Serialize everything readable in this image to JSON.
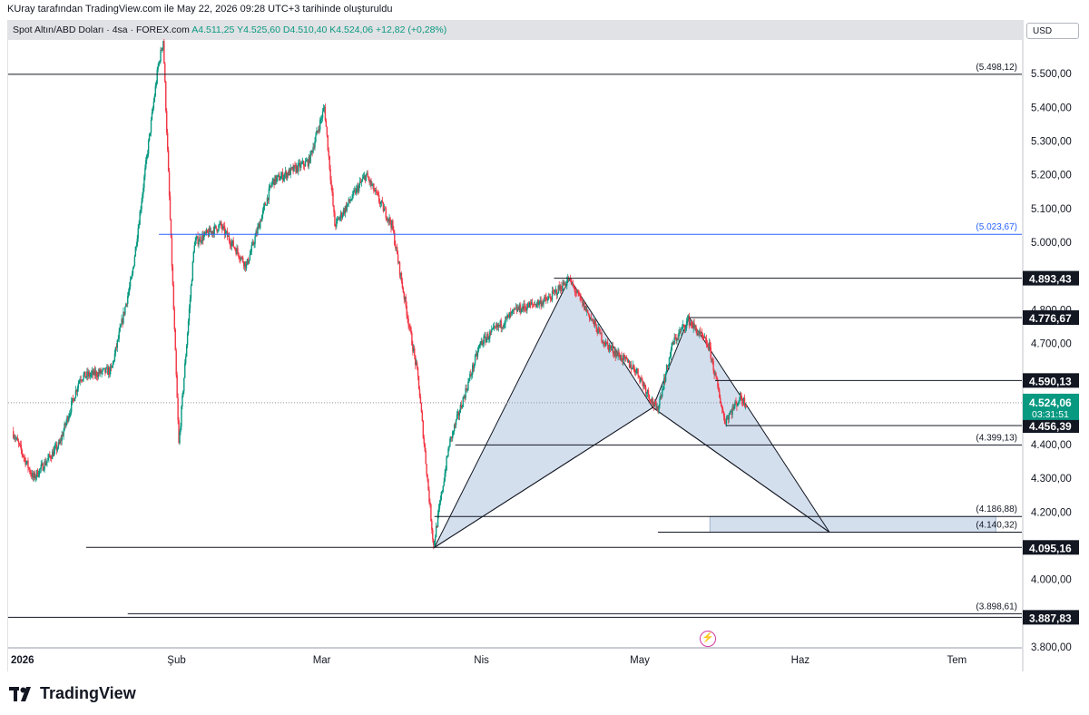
{
  "header": {
    "caption": "KUray tarafından TradingView.com ile May 22, 2026 09:28 UTC+3 tarihinde oluşturuldu",
    "symbol": "Spot Altın/ABD Doları · 4sa · FOREX.com",
    "ohlc": "A4.511,25  Y4.525,60  D4.510,40  K4.524,06  +12,82 (+0,28%)",
    "currency": "USD"
  },
  "brand": {
    "name": "TradingView",
    "icon": "tradingview-logo-icon"
  },
  "colors": {
    "up": "#089981",
    "down": "#f23645",
    "pattern_fill": "#c5d4e8",
    "hline_blue": "#2962ff",
    "last_price": "#089981"
  },
  "chart_data": {
    "type": "candlestick",
    "title": "Spot Altın/ABD Doları",
    "timeframe": "4sa",
    "ylim": [
      3800,
      5600
    ],
    "x_ticks": [
      "2026",
      "Şub",
      "Mar",
      "Nis",
      "May",
      "Haz",
      "Tem"
    ],
    "y_ticks": [
      "5.500,00",
      "5.400,00",
      "5.300,00",
      "5.200,00",
      "5.100,00",
      "5.000,00",
      "4.800,00",
      "4.700,00",
      "4.400,00",
      "4.300,00",
      "4.200,00",
      "4.000,00",
      "3.800,00"
    ],
    "price_path": [
      {
        "date": "2026-01-01",
        "price": 4440
      },
      {
        "date": "2026-01-05",
        "price": 4300
      },
      {
        "date": "2026-01-10",
        "price": 4400
      },
      {
        "date": "2026-01-14",
        "price": 4600
      },
      {
        "date": "2026-01-20",
        "price": 4620
      },
      {
        "date": "2026-01-24",
        "price": 4900
      },
      {
        "date": "2026-01-29",
        "price": 5520
      },
      {
        "date": "2026-01-30",
        "price": 5600
      },
      {
        "date": "2026-02-02",
        "price": 4400
      },
      {
        "date": "2026-02-05",
        "price": 5000
      },
      {
        "date": "2026-02-10",
        "price": 5050
      },
      {
        "date": "2026-02-15",
        "price": 4930
      },
      {
        "date": "2026-02-20",
        "price": 5180
      },
      {
        "date": "2026-02-27",
        "price": 5240
      },
      {
        "date": "2026-03-02",
        "price": 5400
      },
      {
        "date": "2026-03-04",
        "price": 5050
      },
      {
        "date": "2026-03-10",
        "price": 5200
      },
      {
        "date": "2026-03-15",
        "price": 5050
      },
      {
        "date": "2026-03-20",
        "price": 4600
      },
      {
        "date": "2026-03-23",
        "price": 4100
      },
      {
        "date": "2026-03-26",
        "price": 4400
      },
      {
        "date": "2026-04-01",
        "price": 4700
      },
      {
        "date": "2026-04-08",
        "price": 4800
      },
      {
        "date": "2026-04-14",
        "price": 4830
      },
      {
        "date": "2026-04-18",
        "price": 4890
      },
      {
        "date": "2026-04-25",
        "price": 4700
      },
      {
        "date": "2026-05-01",
        "price": 4620
      },
      {
        "date": "2026-05-05",
        "price": 4500
      },
      {
        "date": "2026-05-08",
        "price": 4700
      },
      {
        "date": "2026-05-11",
        "price": 4770
      },
      {
        "date": "2026-05-15",
        "price": 4690
      },
      {
        "date": "2026-05-18",
        "price": 4470
      },
      {
        "date": "2026-05-21",
        "price": 4540
      },
      {
        "date": "2026-05-22",
        "price": 4524
      }
    ],
    "harmonic_pattern": {
      "points": [
        {
          "date": "2026-03-23",
          "price": 4095
        },
        {
          "date": "2026-04-18",
          "price": 4893
        },
        {
          "date": "2026-05-04",
          "price": 4510
        },
        {
          "date": "2026-05-11",
          "price": 4777
        },
        {
          "date": "2026-06-07",
          "price": 4140
        }
      ]
    },
    "horizontal_levels": [
      {
        "label": "(5.498,12)",
        "value": 5498.12,
        "kind": "note",
        "from": "2025-12-30"
      },
      {
        "label": "(5.023,67)",
        "value": 5023.67,
        "kind": "note-blue",
        "from": "2026-01-29"
      },
      {
        "label": "4.893,43",
        "value": 4893.43,
        "kind": "badge",
        "from": "2026-04-15"
      },
      {
        "label": "4.776,67",
        "value": 4776.67,
        "kind": "badge",
        "from": "2026-05-11"
      },
      {
        "label": "4.590,13",
        "value": 4590.13,
        "kind": "badge",
        "from": "2026-05-16"
      },
      {
        "label": "4.456,39",
        "value": 4456.39,
        "kind": "badge",
        "from": "2026-05-18"
      },
      {
        "label": "(4.399,13)",
        "value": 4399.13,
        "kind": "note",
        "from": "2026-03-27"
      },
      {
        "label": "(4.186,88)",
        "value": 4186.88,
        "kind": "note",
        "from": "2026-03-23"
      },
      {
        "label": "(4.140,32)",
        "value": 4140.32,
        "kind": "note",
        "from": "2026-05-05"
      },
      {
        "label": "4.095,16",
        "value": 4095.16,
        "kind": "badge",
        "from": "2026-01-15"
      },
      {
        "label": "(3.898,61)",
        "value": 3898.61,
        "kind": "note",
        "from": "2026-01-23"
      },
      {
        "label": "3.887,83",
        "value": 3887.83,
        "kind": "badge",
        "from": "2025-12-30"
      }
    ],
    "target_zone": {
      "from": "2026-05-15",
      "to": "2026-07-09",
      "low": 4140.32,
      "high": 4186.88
    },
    "last_price": {
      "value": "4.524,06",
      "countdown": "03:31:51"
    }
  }
}
